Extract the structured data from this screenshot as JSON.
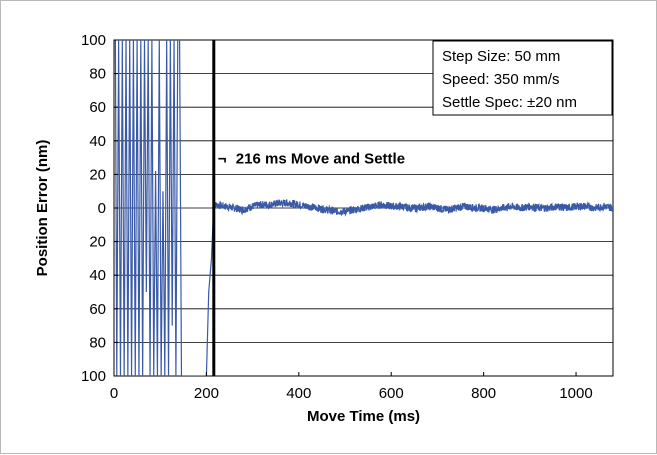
{
  "chart_data": {
    "type": "line",
    "title": "",
    "xlabel": "Move Time (ms)",
    "ylabel": "Position Error (nm)",
    "xlim": [
      0,
      1080
    ],
    "ylim": [
      -100,
      100
    ],
    "x_ticks": [
      0,
      200,
      400,
      600,
      800,
      1000
    ],
    "x_tick_labels": [
      "0",
      "200",
      "400",
      "600",
      "800",
      "1000"
    ],
    "y_ticks": [
      100,
      80,
      60,
      40,
      20,
      0,
      -20,
      -40,
      -60,
      -80,
      -100
    ],
    "y_tick_labels": [
      "100",
      "80",
      "60",
      "40",
      "20",
      "0",
      "20",
      "40",
      "60",
      "80",
      "100"
    ],
    "grid": "horizontal",
    "line_color": "#3a5aa8",
    "marker_color": "#000000",
    "legend_box": {
      "position": "top-right",
      "lines": [
        "Step Size: 50 mm",
        "Speed: 350 mm/s",
        "Settle Spec: ±20 nm"
      ]
    },
    "annotation": {
      "text": "216 ms Move and Settle",
      "x": 216,
      "y": 30,
      "marker_symbol": "¬"
    },
    "settle_marker_x": 216,
    "series": [
      {
        "segment": "move_oscillation",
        "x": [
          0,
          3,
          6,
          10,
          14,
          18,
          22,
          26,
          30,
          34,
          38,
          42,
          46,
          50,
          54,
          58,
          62,
          66,
          70,
          74,
          78,
          82,
          86,
          90,
          94,
          98,
          102,
          106,
          110,
          114,
          118,
          122,
          126,
          130,
          134,
          138,
          142,
          146,
          150,
          160,
          170,
          180,
          190,
          200,
          205,
          208,
          211,
          214,
          216
        ],
        "values": [
          100,
          100,
          -100,
          100,
          -100,
          100,
          -100,
          100,
          -100,
          100,
          -100,
          100,
          -100,
          100,
          -100,
          100,
          -100,
          100,
          -50,
          100,
          -100,
          100,
          -100,
          22,
          -100,
          100,
          -100,
          10,
          -100,
          100,
          -100,
          100,
          -70,
          100,
          -100,
          100,
          100,
          -100,
          -100,
          -100,
          -100,
          -100,
          -100,
          -100,
          -50,
          -40,
          -30,
          -10,
          2
        ]
      },
      {
        "segment": "settled",
        "x": [
          216,
          240,
          260,
          280,
          300,
          320,
          340,
          360,
          380,
          400,
          420,
          440,
          460,
          480,
          500,
          520,
          540,
          560,
          580,
          600,
          620,
          640,
          660,
          680,
          700,
          720,
          740,
          760,
          780,
          800,
          820,
          840,
          860,
          880,
          900,
          920,
          940,
          960,
          980,
          1000,
          1020,
          1040,
          1060,
          1080
        ],
        "values": [
          2,
          1,
          0,
          -1,
          1,
          2,
          2,
          3,
          3,
          2,
          1,
          0,
          -1,
          -2,
          -2,
          -1,
          0,
          1,
          2,
          1,
          1,
          0,
          0,
          1,
          0,
          -1,
          0,
          1,
          0,
          0,
          -1,
          0,
          1,
          0,
          1,
          0,
          0,
          1,
          0,
          1,
          1,
          0,
          1,
          0
        ]
      }
    ]
  }
}
